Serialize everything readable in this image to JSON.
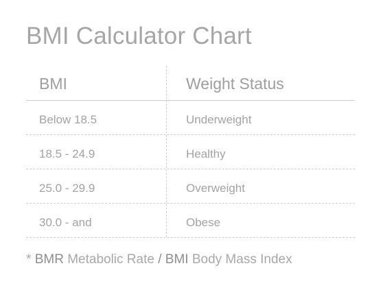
{
  "title": "BMI Calculator Chart",
  "table": {
    "headers": [
      "BMI",
      "Weight Status"
    ],
    "rows": [
      [
        "Below 18.5",
        "Underweight"
      ],
      [
        "18.5 - 24.9",
        "Healthy"
      ],
      [
        "25.0 - 29.9",
        "Overweight"
      ],
      [
        "30.0 - and",
        "Obese"
      ]
    ]
  },
  "footnote": {
    "prefix": "* ",
    "term1": "BMR",
    "desc1": " Metabolic Rate ",
    "sep": "/",
    "term2": " BMI",
    "desc2": " Body Mass Index"
  },
  "colors": {
    "text": "#a3a3a3",
    "divider": "#cfcfcf",
    "background": "#ffffff"
  }
}
